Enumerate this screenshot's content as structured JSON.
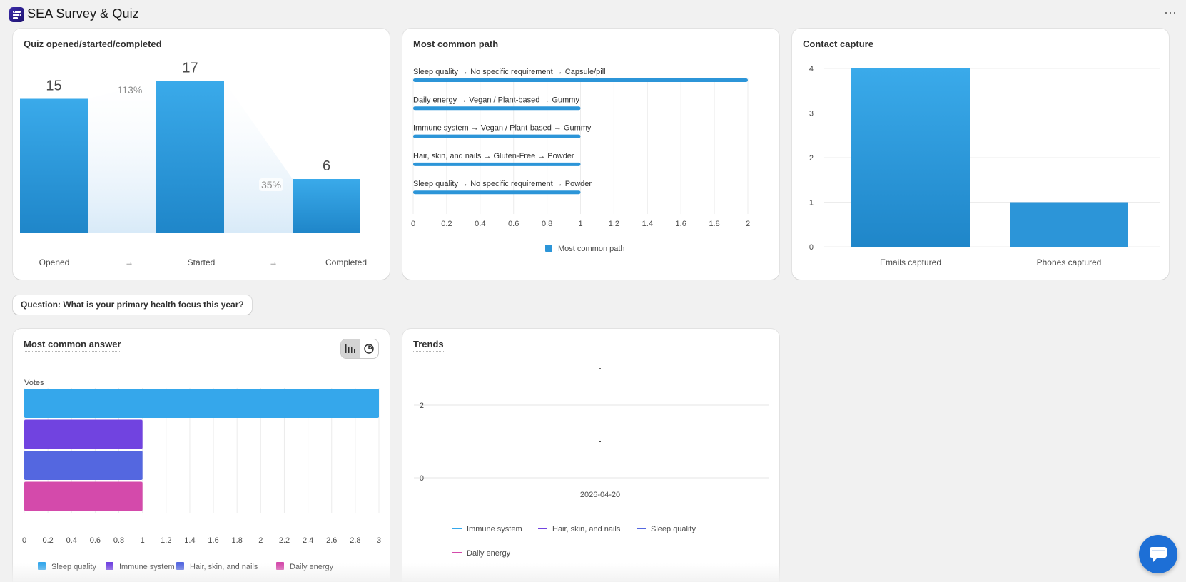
{
  "app": {
    "title": "SEA Survey & Quiz",
    "logo_icon": "survey-app-icon",
    "more_label": "···"
  },
  "funnel": {
    "title": "Quiz opened/started/completed",
    "stages": [
      {
        "label": "Opened",
        "value": 15
      },
      {
        "label": "Started",
        "value": 17
      },
      {
        "label": "Completed",
        "value": 6
      }
    ],
    "conversions": [
      "113%",
      "35%"
    ],
    "arrow": "→",
    "colors": {
      "bar_top": "#3aaaea",
      "bar_bottom": "#1f86c9",
      "flow": "#e6f2fb"
    }
  },
  "paths": {
    "title": "Most common path",
    "legend": "Most common path",
    "color": "#2c95d8"
  },
  "contact": {
    "title": "Contact capture",
    "color": "#2c95d8"
  },
  "question": {
    "label": "Question: What is your primary health focus this year?"
  },
  "answers": {
    "title": "Most common answer",
    "axis_title": "Votes",
    "toggle": {
      "bar_icon": "bar-chart-icon",
      "pie_icon": "pie-chart-icon",
      "active": "bar"
    }
  },
  "trends": {
    "title": "Trends"
  },
  "chart_data": [
    {
      "type": "bar",
      "title": "Quiz opened/started/completed",
      "categories": [
        "Opened",
        "Started",
        "Completed"
      ],
      "values": [
        15,
        17,
        6
      ],
      "conversion_labels": [
        "113%",
        "35%"
      ]
    },
    {
      "type": "bar",
      "orientation": "horizontal",
      "title": "Most common path",
      "categories": [
        "Sleep quality → No specific requirement → Capsule/pill",
        "Daily energy → Vegan / Plant-based → Gummy",
        "Immune system → Vegan / Plant-based → Gummy",
        "Hair, skin, and nails → Gluten-Free → Powder",
        "Sleep quality → No specific requirement → Powder"
      ],
      "series": [
        {
          "name": "Most common path",
          "values": [
            2,
            1,
            1,
            1,
            1
          ]
        }
      ],
      "xlim": [
        0,
        2
      ],
      "xticks": [
        "0",
        "0.2",
        "0.4",
        "0.6",
        "0.8",
        "1",
        "1.2",
        "1.4",
        "1.6",
        "1.8",
        "2"
      ],
      "grid": true,
      "legend": "bottom-center"
    },
    {
      "type": "bar",
      "title": "Contact capture",
      "categories": [
        "Emails captured",
        "Phones captured"
      ],
      "values": [
        4,
        1
      ],
      "ylim": [
        0,
        4
      ],
      "yticks": [
        "0",
        "1",
        "2",
        "3",
        "4"
      ],
      "grid": true
    },
    {
      "type": "bar",
      "orientation": "horizontal",
      "stacked_categories": true,
      "title": "Most common answer",
      "ylabel": "Votes",
      "series": [
        {
          "name": "Sleep quality",
          "values": [
            3
          ],
          "color": "#35a7eb"
        },
        {
          "name": "Immune system",
          "values": [
            1
          ],
          "color": "#7143e0"
        },
        {
          "name": "Hair, skin, and nails",
          "values": [
            1
          ],
          "color": "#5467e0"
        },
        {
          "name": "Daily energy",
          "values": [
            1
          ],
          "color": "#d44aab"
        }
      ],
      "xlim": [
        0,
        3
      ],
      "xticks": [
        "0",
        "0.2",
        "0.4",
        "0.6",
        "0.8",
        "1",
        "1.2",
        "1.4",
        "1.6",
        "1.8",
        "2",
        "2.2",
        "2.4",
        "2.6",
        "2.8",
        "3"
      ],
      "grid": true,
      "legend": "bottom-center"
    },
    {
      "type": "scatter",
      "title": "Trends",
      "x": [
        "2026-04-20"
      ],
      "yticks": [
        "0",
        "2"
      ],
      "series": [
        {
          "name": "Immune system",
          "values": [
            1
          ],
          "color": "#35a7eb"
        },
        {
          "name": "Hair, skin, and nails",
          "values": [
            1
          ],
          "color": "#7143e0"
        },
        {
          "name": "Sleep quality",
          "values": [
            3
          ],
          "color": "#5467e0"
        },
        {
          "name": "Daily energy",
          "values": [
            1
          ],
          "color": "#d44aab"
        }
      ],
      "grid": true,
      "legend": "bottom-left"
    }
  ]
}
